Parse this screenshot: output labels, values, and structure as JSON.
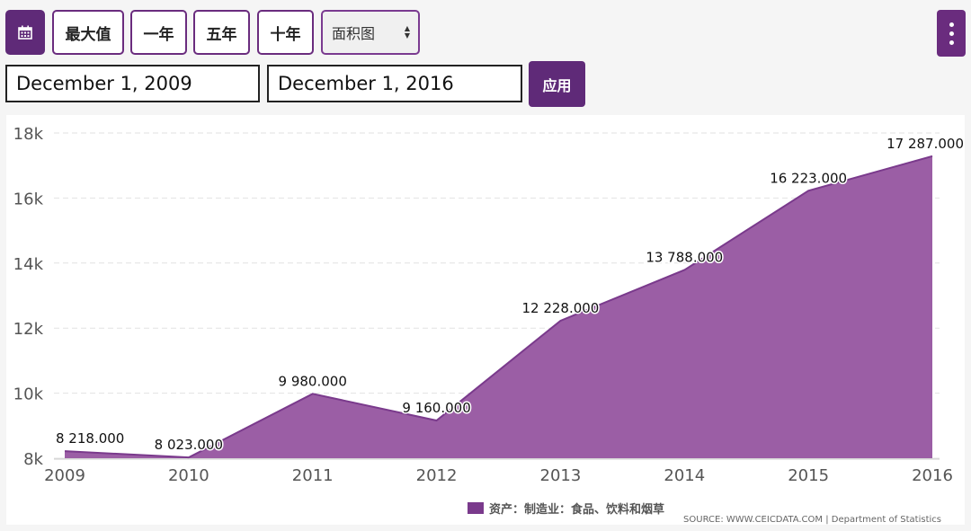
{
  "toolbar": {
    "calendar_icon": "calendar-icon",
    "btn_max": "最大值",
    "btn_1y": "一年",
    "btn_5y": "五年",
    "btn_10y": "十年",
    "chart_type_select": "面积图",
    "menu_icon": "more-vertical-icon"
  },
  "date_range": {
    "start": "December 1, 2009",
    "end": "December 1, 2016",
    "apply_label": "应用"
  },
  "colors": {
    "accent": "#6a2c7e",
    "area_fill": "#9b5ea5",
    "area_stroke": "#7a3a8c"
  },
  "chart_data": {
    "type": "area",
    "x": [
      "2009",
      "2010",
      "2011",
      "2012",
      "2013",
      "2014",
      "2015",
      "2016"
    ],
    "series": [
      {
        "name": "资产：制造业：食品、饮料和烟草",
        "values": [
          8218,
          8023,
          9980,
          9160,
          12228,
          13788,
          16223,
          17287
        ],
        "labels": [
          "8 218.000",
          "8 023.000",
          "9 980.000",
          "9 160.000",
          "12 228.000",
          "13 788.000",
          "16 223.000",
          "17 287.000"
        ]
      }
    ],
    "ylim": [
      8000,
      18000
    ],
    "yticks": [
      8000,
      10000,
      12000,
      14000,
      16000,
      18000
    ],
    "ytick_labels": [
      "8k",
      "10k",
      "12k",
      "14k",
      "16k",
      "18k"
    ],
    "grid": true,
    "legend_position": "bottom-right",
    "source": "SOURCE: WWW.CEICDATA.COM | Department of Statistics"
  }
}
